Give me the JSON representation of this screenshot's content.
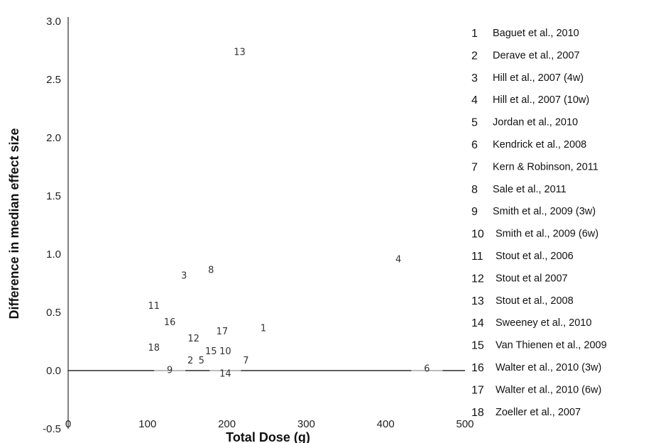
{
  "chart_data": {
    "type": "scatter",
    "xlabel": "Total Dose (g)",
    "ylabel": "Difference in median effect size",
    "xlim": [
      0,
      500
    ],
    "ylim": [
      -0.5,
      3.0
    ],
    "x_ticks": [
      "0",
      "100",
      "200",
      "300",
      "400",
      "500"
    ],
    "y_ticks": [
      "-0.5",
      "0.0",
      "0.5",
      "1.0",
      "1.5",
      "2.0",
      "2.5",
      "3.0"
    ],
    "points": [
      {
        "label": "1",
        "x": 246,
        "y": 0.37
      },
      {
        "label": "2",
        "x": 154,
        "y": 0.09
      },
      {
        "label": "3",
        "x": 146,
        "y": 0.82
      },
      {
        "label": "4",
        "x": 416,
        "y": 0.96
      },
      {
        "label": "5",
        "x": 168,
        "y": 0.09
      },
      {
        "label": "6",
        "x": 452,
        "y": 0.02
      },
      {
        "label": "7",
        "x": 224,
        "y": 0.09
      },
      {
        "label": "8",
        "x": 180,
        "y": 0.87
      },
      {
        "label": "9",
        "x": 128,
        "y": 0.01
      },
      {
        "label": "10",
        "x": 198,
        "y": 0.17
      },
      {
        "label": "11",
        "x": 108,
        "y": 0.56
      },
      {
        "label": "12",
        "x": 158,
        "y": 0.28
      },
      {
        "label": "13",
        "x": 216,
        "y": 2.74
      },
      {
        "label": "14",
        "x": 198,
        "y": -0.02
      },
      {
        "label": "15",
        "x": 180,
        "y": 0.17
      },
      {
        "label": "16",
        "x": 128,
        "y": 0.42
      },
      {
        "label": "17",
        "x": 194,
        "y": 0.34
      },
      {
        "label": "18",
        "x": 108,
        "y": 0.2
      }
    ],
    "legend": [
      {
        "num": "1",
        "text": "Baguet et al., 2010"
      },
      {
        "num": "2",
        "text": "Derave et al., 2007"
      },
      {
        "num": "3",
        "text": "Hill et al., 2007 (4w)"
      },
      {
        "num": "4",
        "text": "Hill et al., 2007 (10w)"
      },
      {
        "num": "5",
        "text": "Jordan et al., 2010"
      },
      {
        "num": "6",
        "text": "Kendrick et al., 2008"
      },
      {
        "num": "7",
        "text": "Kern & Robinson, 2011"
      },
      {
        "num": "8",
        "text": "Sale et al., 2011"
      },
      {
        "num": "9",
        "text": "Smith et al., 2009 (3w)"
      },
      {
        "num": "10",
        "text": "Smith et al., 2009 (6w)"
      },
      {
        "num": "11",
        "text": "Stout et al., 2006"
      },
      {
        "num": "12",
        "text": "Stout et al 2007"
      },
      {
        "num": "13",
        "text": "Stout et al., 2008"
      },
      {
        "num": "14",
        "text": "Sweeney et al., 2010"
      },
      {
        "num": "15",
        "text": "Van Thienen et al., 2009"
      },
      {
        "num": "16",
        "text": "Walter et al., 2010 (3w)"
      },
      {
        "num": "17",
        "text": "Walter et al., 2010 (6w)"
      },
      {
        "num": "18",
        "text": "Zoeller et al., 2007"
      }
    ],
    "legend_position": "right",
    "grid": false
  }
}
